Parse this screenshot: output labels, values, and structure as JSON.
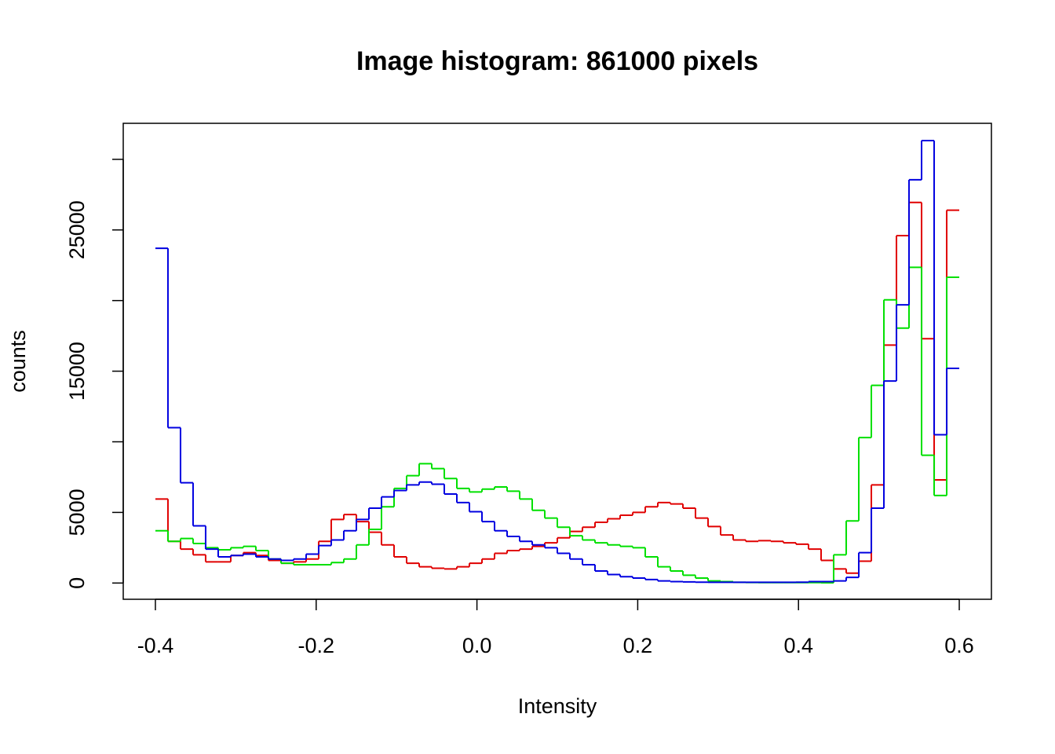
{
  "chart_data": {
    "type": "histogram",
    "title": "Image histogram: 861000 pixels",
    "x_label": "Intensity",
    "y_label": "counts",
    "bins": [
      -0.4,
      -0.384375,
      -0.36875,
      -0.353125,
      -0.3375,
      -0.321875,
      -0.30625,
      -0.290625,
      -0.275,
      -0.259375,
      -0.24375,
      -0.228125,
      -0.2125,
      -0.196875,
      -0.18125,
      -0.165625,
      -0.15,
      -0.134375,
      -0.11875,
      -0.103125,
      -0.0875,
      -0.071875,
      -0.05625,
      -0.040625,
      -0.025,
      -0.009375,
      0.00625,
      0.021875,
      0.0375,
      0.053125,
      0.06875,
      0.084375,
      0.1,
      0.115625,
      0.13125,
      0.146875,
      0.1625,
      0.178125,
      0.19375,
      0.209375,
      0.225,
      0.240625,
      0.25625,
      0.271875,
      0.2875,
      0.303125,
      0.31875,
      0.334375,
      0.35,
      0.365625,
      0.38125,
      0.396875,
      0.4125,
      0.428125,
      0.44375,
      0.459375,
      0.475,
      0.490625,
      0.50625,
      0.521875,
      0.5375,
      0.553125,
      0.56875,
      0.584375,
      0.6
    ],
    "series": [
      {
        "color": "#e00000",
        "values": [
          5950,
          2950,
          2400,
          2000,
          1500,
          1500,
          1950,
          2150,
          1950,
          1600,
          1400,
          1500,
          1700,
          2950,
          4500,
          4850,
          4350,
          3600,
          2700,
          1850,
          1400,
          1150,
          1050,
          1000,
          1150,
          1400,
          1700,
          2100,
          2300,
          2400,
          2600,
          2850,
          3200,
          3650,
          3950,
          4300,
          4550,
          4800,
          5000,
          5400,
          5700,
          5600,
          5300,
          4600,
          4000,
          3400,
          3050,
          2950,
          3000,
          2950,
          2850,
          2750,
          2400,
          1600,
          1000,
          700,
          1550,
          6950,
          16850,
          24600,
          26950,
          17300,
          7300,
          26400
        ]
      },
      {
        "color": "#00e000",
        "values": [
          3700,
          2950,
          3150,
          2800,
          2500,
          2350,
          2500,
          2600,
          2300,
          1700,
          1400,
          1300,
          1300,
          1300,
          1450,
          1700,
          2700,
          3800,
          5400,
          6700,
          7600,
          8450,
          8100,
          7400,
          6700,
          6450,
          6650,
          6800,
          6500,
          5950,
          5150,
          4600,
          3950,
          3350,
          3050,
          2850,
          2700,
          2600,
          2500,
          1850,
          1150,
          850,
          550,
          350,
          150,
          100,
          50,
          40,
          30,
          30,
          30,
          30,
          30,
          20,
          2000,
          4400,
          10300,
          14000,
          20050,
          18050,
          22350,
          9050,
          6200,
          21650
        ]
      },
      {
        "color": "#0000e0",
        "values": [
          23700,
          11000,
          7100,
          4050,
          2400,
          1850,
          1950,
          2050,
          1850,
          1700,
          1600,
          1700,
          2050,
          2650,
          3050,
          3700,
          4500,
          5300,
          6100,
          6550,
          6950,
          7150,
          7000,
          6300,
          5700,
          5050,
          4350,
          3700,
          3300,
          2950,
          2700,
          2500,
          2100,
          1700,
          1300,
          850,
          600,
          450,
          350,
          250,
          150,
          100,
          80,
          60,
          50,
          50,
          50,
          50,
          50,
          50,
          50,
          60,
          100,
          100,
          150,
          400,
          2150,
          5300,
          14300,
          19700,
          28550,
          31330,
          10500,
          15200
        ]
      }
    ],
    "xlim": [
      -0.44,
      0.64
    ],
    "xticks": [
      -0.4,
      -0.2,
      {
        "value": 0,
        "label": "0.0"
      },
      0.2,
      0.4,
      0.6
    ],
    "ylim": [
      -1150,
      32550
    ],
    "yticks": [
      0,
      5000,
      {
        "value": 10000,
        "label": null
      },
      15000,
      {
        "value": 20000,
        "label": null
      },
      25000,
      {
        "value": 30000,
        "label": null
      }
    ]
  }
}
